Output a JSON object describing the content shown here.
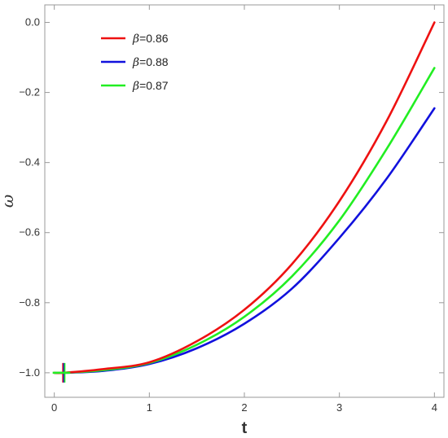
{
  "chart_data": {
    "type": "line",
    "title": "",
    "xlabel": "t",
    "ylabel": "ω",
    "xlim": [
      -0.1,
      4.1
    ],
    "ylim": [
      -1.07,
      0.05
    ],
    "xticks": [
      0,
      1,
      2,
      3,
      4
    ],
    "xtick_labels": [
      "0",
      "1",
      "2",
      "3",
      "4"
    ],
    "yticks": [
      0.0,
      -0.2,
      -0.4,
      -0.6,
      -0.8,
      -1.0
    ],
    "ytick_labels": [
      "0.0",
      "−0.2",
      "−0.4",
      "−0.6",
      "−0.8",
      "−1.0"
    ],
    "grid": false,
    "legend_position": "top-left",
    "x": [
      0.0,
      0.1,
      0.5,
      1.0,
      1.5,
      2.0,
      2.5,
      3.0,
      3.5,
      4.0
    ],
    "series": [
      {
        "name": "β=0.86",
        "legend_symbol": "β",
        "legend_value": "=0.86",
        "color": "#ee1111",
        "values": [
          -1.0,
          -1.0,
          -0.99,
          -0.97,
          -0.91,
          -0.82,
          -0.69,
          -0.51,
          -0.28,
          0.0
        ]
      },
      {
        "name": "β=0.88",
        "legend_symbol": "β",
        "legend_value": "=0.88",
        "color": "#1111dd",
        "values": [
          -1.0,
          -1.0,
          -0.995,
          -0.975,
          -0.93,
          -0.86,
          -0.76,
          -0.615,
          -0.445,
          -0.245
        ]
      },
      {
        "name": "β=0.87",
        "legend_symbol": "β",
        "legend_value": "=0.87",
        "color": "#22ee22",
        "values": [
          -1.0,
          -1.0,
          -0.993,
          -0.972,
          -0.92,
          -0.84,
          -0.725,
          -0.565,
          -0.36,
          -0.13
        ]
      }
    ]
  }
}
